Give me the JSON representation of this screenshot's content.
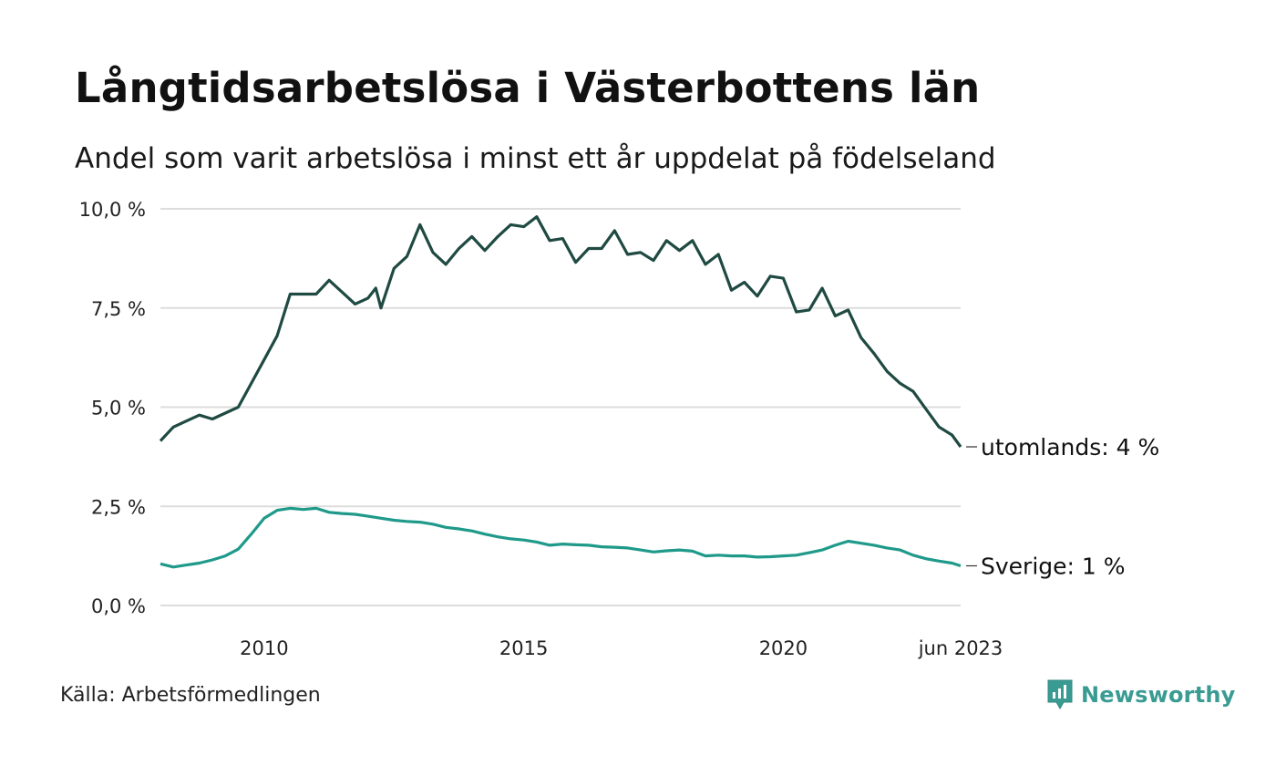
{
  "title": "Långtidsarbetslösa i Västerbottens län",
  "subtitle": "Andel som varit arbetslösa i minst ett år uppdelat på födelseland",
  "source": "Källa: Arbetsförmedlingen",
  "brand": "Newsworthy",
  "colors": {
    "utomlands": "#1f4a42",
    "sverige": "#1f9a8a",
    "grid": "#dddddd",
    "brand": "#3a9b93"
  },
  "chart_data": {
    "type": "line",
    "title": "Långtidsarbetslösa i Västerbottens län",
    "xlabel": "",
    "ylabel": "",
    "ylim": [
      0,
      10
    ],
    "y_ticks": [
      0,
      2.5,
      5,
      7.5,
      10
    ],
    "y_tick_labels": [
      "0,0 %",
      "2,5 %",
      "5,0 %",
      "7,5 %",
      "10,0 %"
    ],
    "x_range": [
      2008.0,
      2023.4167
    ],
    "x_ticks": [
      2010,
      2015,
      2020,
      2023.4167
    ],
    "x_tick_labels": [
      "2010",
      "2015",
      "2020",
      "jun 2023"
    ],
    "series": [
      {
        "name": "utomlands",
        "end_label": "utomlands: 4 %",
        "color": "#1f4a42",
        "points": [
          [
            2008.0,
            4.15
          ],
          [
            2008.25,
            4.5
          ],
          [
            2008.5,
            4.65
          ],
          [
            2008.75,
            4.8
          ],
          [
            2009.0,
            4.7
          ],
          [
            2009.25,
            4.85
          ],
          [
            2009.5,
            5.0
          ],
          [
            2009.75,
            5.6
          ],
          [
            2010.0,
            6.2
          ],
          [
            2010.25,
            6.8
          ],
          [
            2010.5,
            7.85
          ],
          [
            2010.75,
            7.85
          ],
          [
            2011.0,
            7.85
          ],
          [
            2011.25,
            8.2
          ],
          [
            2011.5,
            7.9
          ],
          [
            2011.75,
            7.6
          ],
          [
            2012.0,
            7.75
          ],
          [
            2012.15,
            8.0
          ],
          [
            2012.25,
            7.5
          ],
          [
            2012.5,
            8.5
          ],
          [
            2012.75,
            8.8
          ],
          [
            2013.0,
            9.6
          ],
          [
            2013.25,
            8.9
          ],
          [
            2013.5,
            8.6
          ],
          [
            2013.75,
            9.0
          ],
          [
            2014.0,
            9.3
          ],
          [
            2014.25,
            8.95
          ],
          [
            2014.5,
            9.3
          ],
          [
            2014.75,
            9.6
          ],
          [
            2015.0,
            9.55
          ],
          [
            2015.25,
            9.8
          ],
          [
            2015.5,
            9.2
          ],
          [
            2015.75,
            9.25
          ],
          [
            2016.0,
            8.65
          ],
          [
            2016.25,
            9.0
          ],
          [
            2016.5,
            9.0
          ],
          [
            2016.75,
            9.45
          ],
          [
            2017.0,
            8.85
          ],
          [
            2017.25,
            8.9
          ],
          [
            2017.5,
            8.7
          ],
          [
            2017.75,
            9.2
          ],
          [
            2018.0,
            8.95
          ],
          [
            2018.25,
            9.2
          ],
          [
            2018.5,
            8.6
          ],
          [
            2018.75,
            8.85
          ],
          [
            2019.0,
            7.95
          ],
          [
            2019.25,
            8.15
          ],
          [
            2019.5,
            7.8
          ],
          [
            2019.75,
            8.3
          ],
          [
            2020.0,
            8.25
          ],
          [
            2020.25,
            7.4
          ],
          [
            2020.5,
            7.45
          ],
          [
            2020.75,
            8.0
          ],
          [
            2021.0,
            7.3
          ],
          [
            2021.25,
            7.45
          ],
          [
            2021.5,
            6.75
          ],
          [
            2021.75,
            6.35
          ],
          [
            2022.0,
            5.9
          ],
          [
            2022.25,
            5.6
          ],
          [
            2022.5,
            5.4
          ],
          [
            2022.75,
            4.95
          ],
          [
            2023.0,
            4.5
          ],
          [
            2023.25,
            4.3
          ],
          [
            2023.4167,
            4.0
          ]
        ]
      },
      {
        "name": "Sverige",
        "end_label": "Sverige: 1 %",
        "color": "#1f9a8a",
        "points": [
          [
            2008.0,
            1.05
          ],
          [
            2008.25,
            0.97
          ],
          [
            2008.5,
            1.02
          ],
          [
            2008.75,
            1.07
          ],
          [
            2009.0,
            1.15
          ],
          [
            2009.25,
            1.25
          ],
          [
            2009.5,
            1.42
          ],
          [
            2009.75,
            1.8
          ],
          [
            2010.0,
            2.2
          ],
          [
            2010.25,
            2.4
          ],
          [
            2010.5,
            2.45
          ],
          [
            2010.75,
            2.42
          ],
          [
            2011.0,
            2.45
          ],
          [
            2011.25,
            2.35
          ],
          [
            2011.5,
            2.32
          ],
          [
            2011.75,
            2.3
          ],
          [
            2012.0,
            2.25
          ],
          [
            2012.25,
            2.2
          ],
          [
            2012.5,
            2.15
          ],
          [
            2012.75,
            2.12
          ],
          [
            2013.0,
            2.1
          ],
          [
            2013.25,
            2.05
          ],
          [
            2013.5,
            1.97
          ],
          [
            2013.75,
            1.93
          ],
          [
            2014.0,
            1.88
          ],
          [
            2014.25,
            1.8
          ],
          [
            2014.5,
            1.73
          ],
          [
            2014.75,
            1.68
          ],
          [
            2015.0,
            1.65
          ],
          [
            2015.25,
            1.6
          ],
          [
            2015.5,
            1.52
          ],
          [
            2015.75,
            1.55
          ],
          [
            2016.0,
            1.53
          ],
          [
            2016.25,
            1.52
          ],
          [
            2016.5,
            1.48
          ],
          [
            2016.75,
            1.47
          ],
          [
            2017.0,
            1.45
          ],
          [
            2017.25,
            1.4
          ],
          [
            2017.5,
            1.35
          ],
          [
            2017.75,
            1.38
          ],
          [
            2018.0,
            1.4
          ],
          [
            2018.25,
            1.37
          ],
          [
            2018.5,
            1.25
          ],
          [
            2018.75,
            1.27
          ],
          [
            2019.0,
            1.25
          ],
          [
            2019.25,
            1.25
          ],
          [
            2019.5,
            1.22
          ],
          [
            2019.75,
            1.23
          ],
          [
            2020.0,
            1.25
          ],
          [
            2020.25,
            1.27
          ],
          [
            2020.5,
            1.33
          ],
          [
            2020.75,
            1.4
          ],
          [
            2021.0,
            1.52
          ],
          [
            2021.25,
            1.62
          ],
          [
            2021.5,
            1.57
          ],
          [
            2021.75,
            1.52
          ],
          [
            2022.0,
            1.45
          ],
          [
            2022.25,
            1.4
          ],
          [
            2022.5,
            1.27
          ],
          [
            2022.75,
            1.18
          ],
          [
            2023.0,
            1.12
          ],
          [
            2023.25,
            1.07
          ],
          [
            2023.4167,
            1.0
          ]
        ]
      }
    ]
  }
}
